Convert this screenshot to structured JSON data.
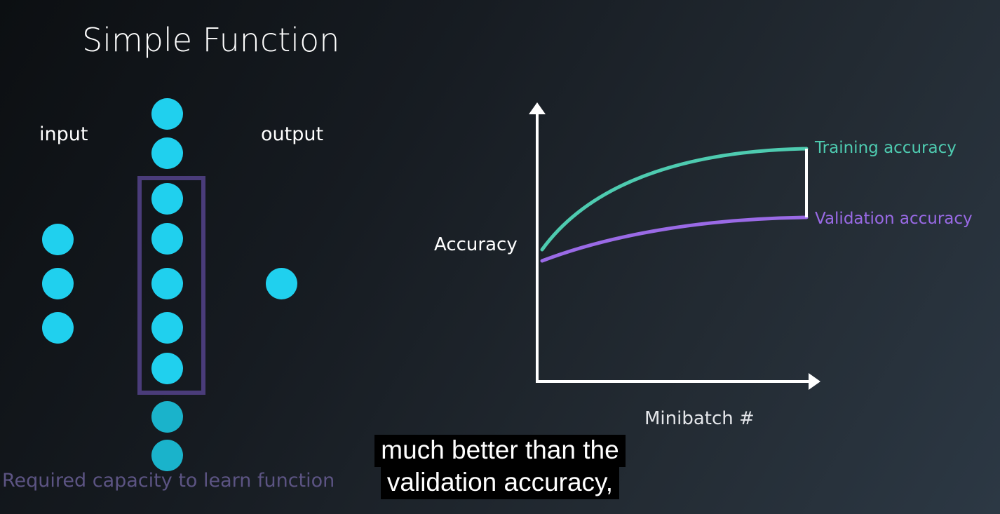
{
  "slide": {
    "title": "Simple Function"
  },
  "network": {
    "input_label": "input",
    "output_label": "output",
    "input_node_count": 3,
    "hidden_node_count": 9,
    "output_node_count": 1,
    "capacity_label": "Required capacity to learn function",
    "colors": {
      "node": "#20d0ee",
      "capacity_box": "#4a3c7a",
      "capacity_text": "#5c5483"
    }
  },
  "chart_data": {
    "type": "line",
    "ylabel": "Accuracy",
    "xlabel": "Minibatch #",
    "grid": false,
    "legend": "right",
    "series": [
      {
        "name": "Training accuracy",
        "color": "#4ecbb0"
      },
      {
        "name": "Validation accuracy",
        "color": "#9a6ae6"
      }
    ]
  },
  "subtitle": {
    "line1": "much better than the",
    "line2": "validation accuracy,"
  }
}
